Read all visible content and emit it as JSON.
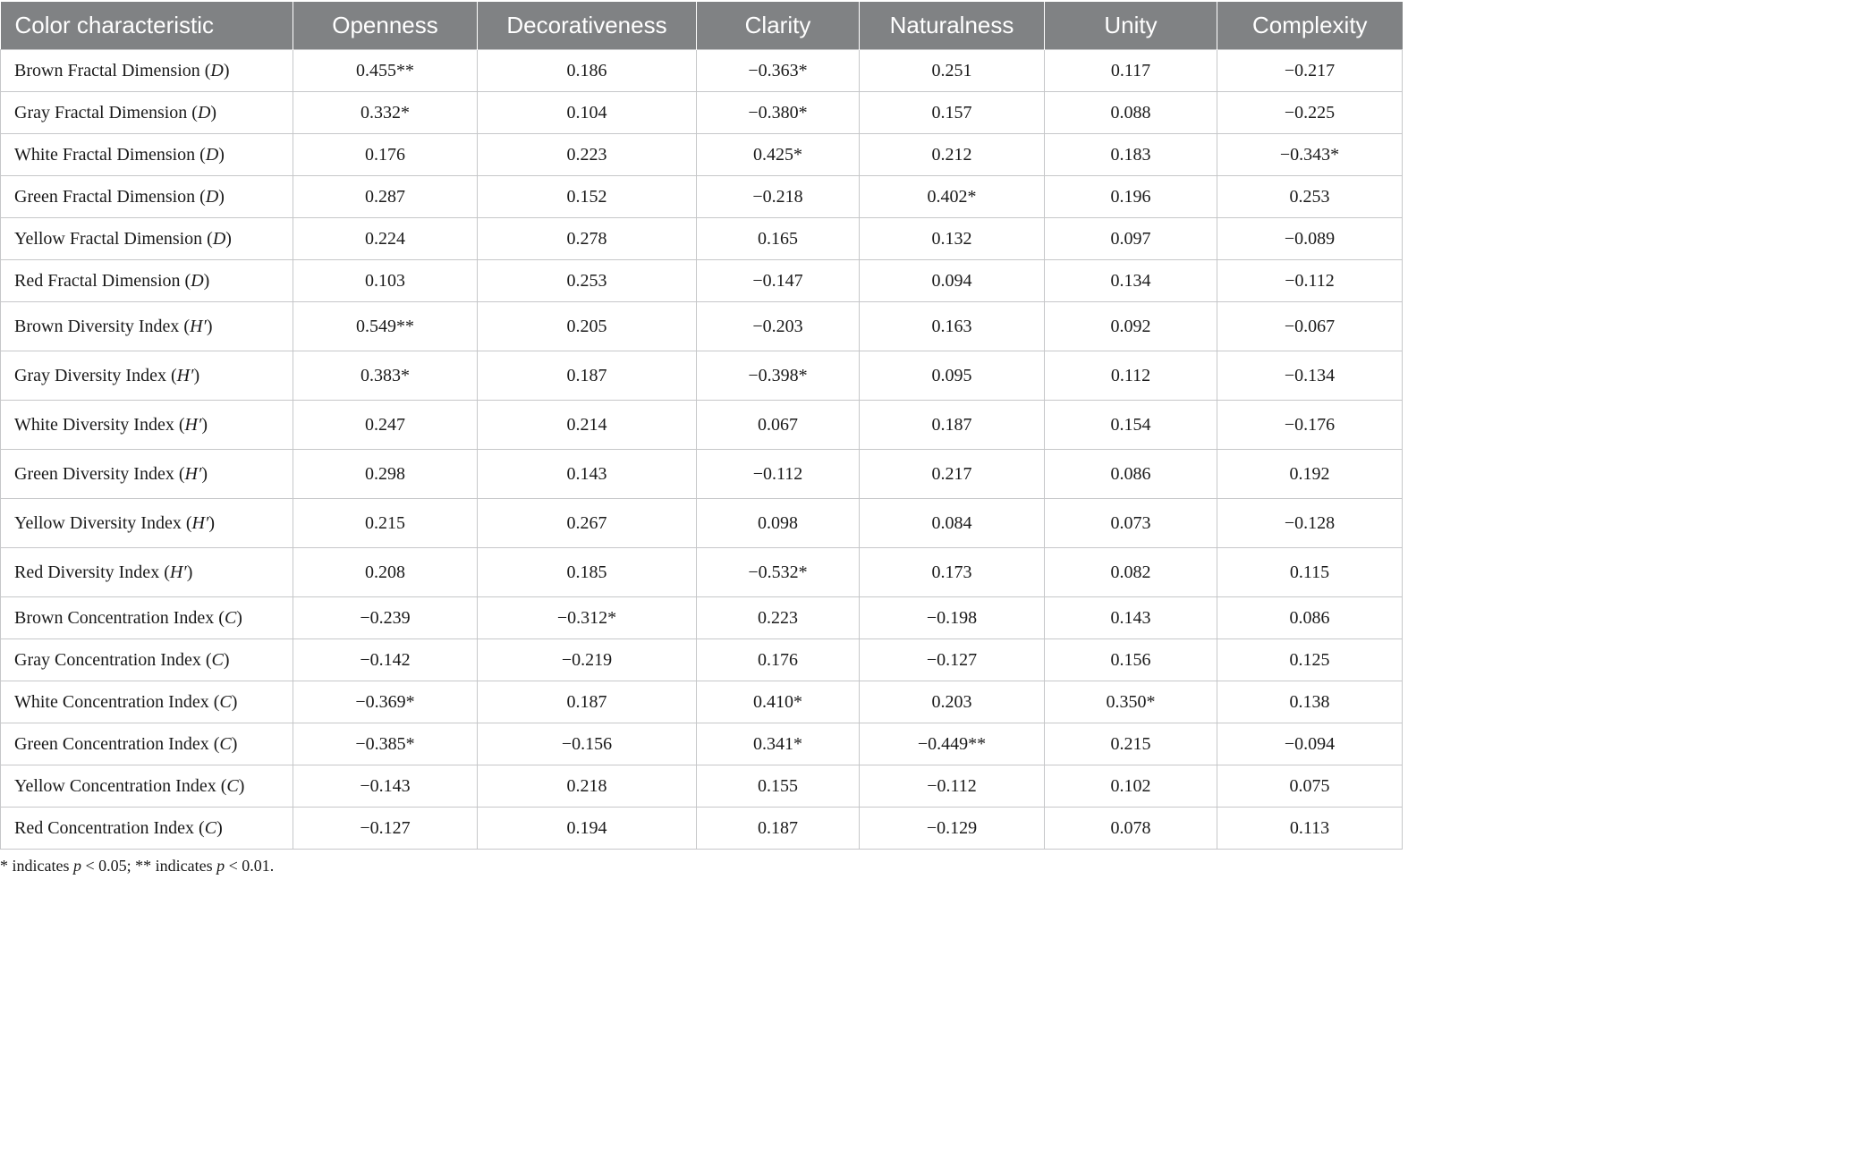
{
  "table": {
    "headers": [
      "Color characteristic",
      "Openness",
      "Decorativeness",
      "Clarity",
      "Naturalness",
      "Unity",
      "Complexity"
    ],
    "rows": [
      {
        "label": "Brown Fractal Dimension (",
        "sym": "D",
        "close": ")",
        "values": [
          "0.455**",
          "0.186",
          "−0.363*",
          "0.251",
          "0.117",
          "−0.217"
        ]
      },
      {
        "label": "Gray Fractal Dimension (",
        "sym": "D",
        "close": ")",
        "values": [
          "0.332*",
          "0.104",
          "−0.380*",
          "0.157",
          "0.088",
          "−0.225"
        ]
      },
      {
        "label": "White Fractal Dimension (",
        "sym": "D",
        "close": ")",
        "values": [
          "0.176",
          "0.223",
          "0.425*",
          "0.212",
          "0.183",
          "−0.343*"
        ]
      },
      {
        "label": "Green Fractal Dimension (",
        "sym": "D",
        "close": ")",
        "values": [
          "0.287",
          "0.152",
          "−0.218",
          "0.402*",
          "0.196",
          "0.253"
        ]
      },
      {
        "label": "Yellow Fractal Dimension (",
        "sym": "D",
        "close": ")",
        "values": [
          "0.224",
          "0.278",
          "0.165",
          "0.132",
          "0.097",
          "−0.089"
        ]
      },
      {
        "label": "Red Fractal Dimension (",
        "sym": "D",
        "close": ")",
        "values": [
          "0.103",
          "0.253",
          "−0.147",
          "0.094",
          "0.134",
          "−0.112"
        ]
      },
      {
        "label": "Brown Diversity Index (",
        "sym": "H′",
        "close": ")",
        "values": [
          "0.549**",
          "0.205",
          "−0.203",
          "0.163",
          "0.092",
          "−0.067"
        ]
      },
      {
        "label": "Gray Diversity Index (",
        "sym": "H′",
        "close": ")",
        "values": [
          "0.383*",
          "0.187",
          "−0.398*",
          "0.095",
          "0.112",
          "−0.134"
        ]
      },
      {
        "label": "White Diversity Index (",
        "sym": "H′",
        "close": ")",
        "values": [
          "0.247",
          "0.214",
          "0.067",
          "0.187",
          "0.154",
          "−0.176"
        ]
      },
      {
        "label": "Green Diversity Index (",
        "sym": "H′",
        "close": ")",
        "values": [
          "0.298",
          "0.143",
          "−0.112",
          "0.217",
          "0.086",
          "0.192"
        ]
      },
      {
        "label": "Yellow Diversity Index (",
        "sym": "H′",
        "close": ")",
        "values": [
          "0.215",
          "0.267",
          "0.098",
          "0.084",
          "0.073",
          "−0.128"
        ]
      },
      {
        "label": "Red Diversity Index (",
        "sym": "H′",
        "close": ")",
        "values": [
          "0.208",
          "0.185",
          "−0.532*",
          "0.173",
          "0.082",
          "0.115"
        ]
      },
      {
        "label": "Brown Concentration Index (",
        "sym": "C",
        "close": ")",
        "values": [
          "−0.239",
          "−0.312*",
          "0.223",
          "−0.198",
          "0.143",
          "0.086"
        ]
      },
      {
        "label": "Gray Concentration Index (",
        "sym": "C",
        "close": ")",
        "values": [
          "−0.142",
          "−0.219",
          "0.176",
          "−0.127",
          "0.156",
          "0.125"
        ]
      },
      {
        "label": "White Concentration Index (",
        "sym": "C",
        "close": ")",
        "values": [
          "−0.369*",
          "0.187",
          "0.410*",
          "0.203",
          "0.350*",
          "0.138"
        ]
      },
      {
        "label": "Green Concentration Index (",
        "sym": "C",
        "close": ")",
        "values": [
          "−0.385*",
          "−0.156",
          "0.341*",
          "−0.449**",
          "0.215",
          "−0.094"
        ]
      },
      {
        "label": "Yellow Concentration Index (",
        "sym": "C",
        "close": ")",
        "values": [
          "−0.143",
          "0.218",
          "0.155",
          "−0.112",
          "0.102",
          "0.075"
        ]
      },
      {
        "label": "Red Concentration Index (",
        "sym": "C",
        "close": ")",
        "values": [
          "−0.127",
          "0.194",
          "0.187",
          "−0.129",
          "0.078",
          "0.113"
        ]
      }
    ]
  },
  "footnote": {
    "part1": "* indicates ",
    "p1": "p",
    "part2": " < 0.05; ** indicates ",
    "p2": "p",
    "part3": " < 0.01."
  },
  "colors": {
    "header_bg": "#808284",
    "header_text": "#ffffff",
    "grid": "#c6c7c9"
  }
}
